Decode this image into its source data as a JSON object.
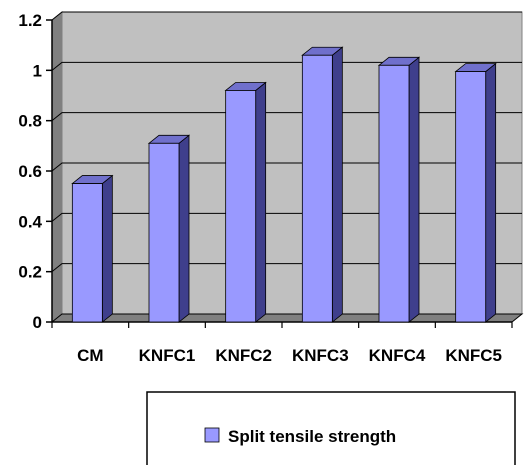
{
  "chart_data": {
    "type": "bar",
    "categories": [
      "CM",
      "KNFC1",
      "KNFC2",
      "KNFC3",
      "KNFC4",
      "KNFC5"
    ],
    "series": [
      {
        "name": "Split tensile strength",
        "values": [
          0.55,
          0.71,
          0.92,
          1.06,
          1.02,
          0.995
        ]
      }
    ],
    "ylim": [
      0,
      1.2
    ],
    "yticks": [
      "0",
      "0.2",
      "0.4",
      "0.6",
      "0.8",
      "1",
      "1.2"
    ],
    "grid": true,
    "legend_position": "bottom",
    "colors": {
      "bar_front": "#9999ff",
      "bar_side": "#3f3f8c",
      "bar_top": "#7070cc",
      "plot_back": "#c0c0c0",
      "plot_floor": "#808080",
      "grid": "#000000"
    }
  }
}
